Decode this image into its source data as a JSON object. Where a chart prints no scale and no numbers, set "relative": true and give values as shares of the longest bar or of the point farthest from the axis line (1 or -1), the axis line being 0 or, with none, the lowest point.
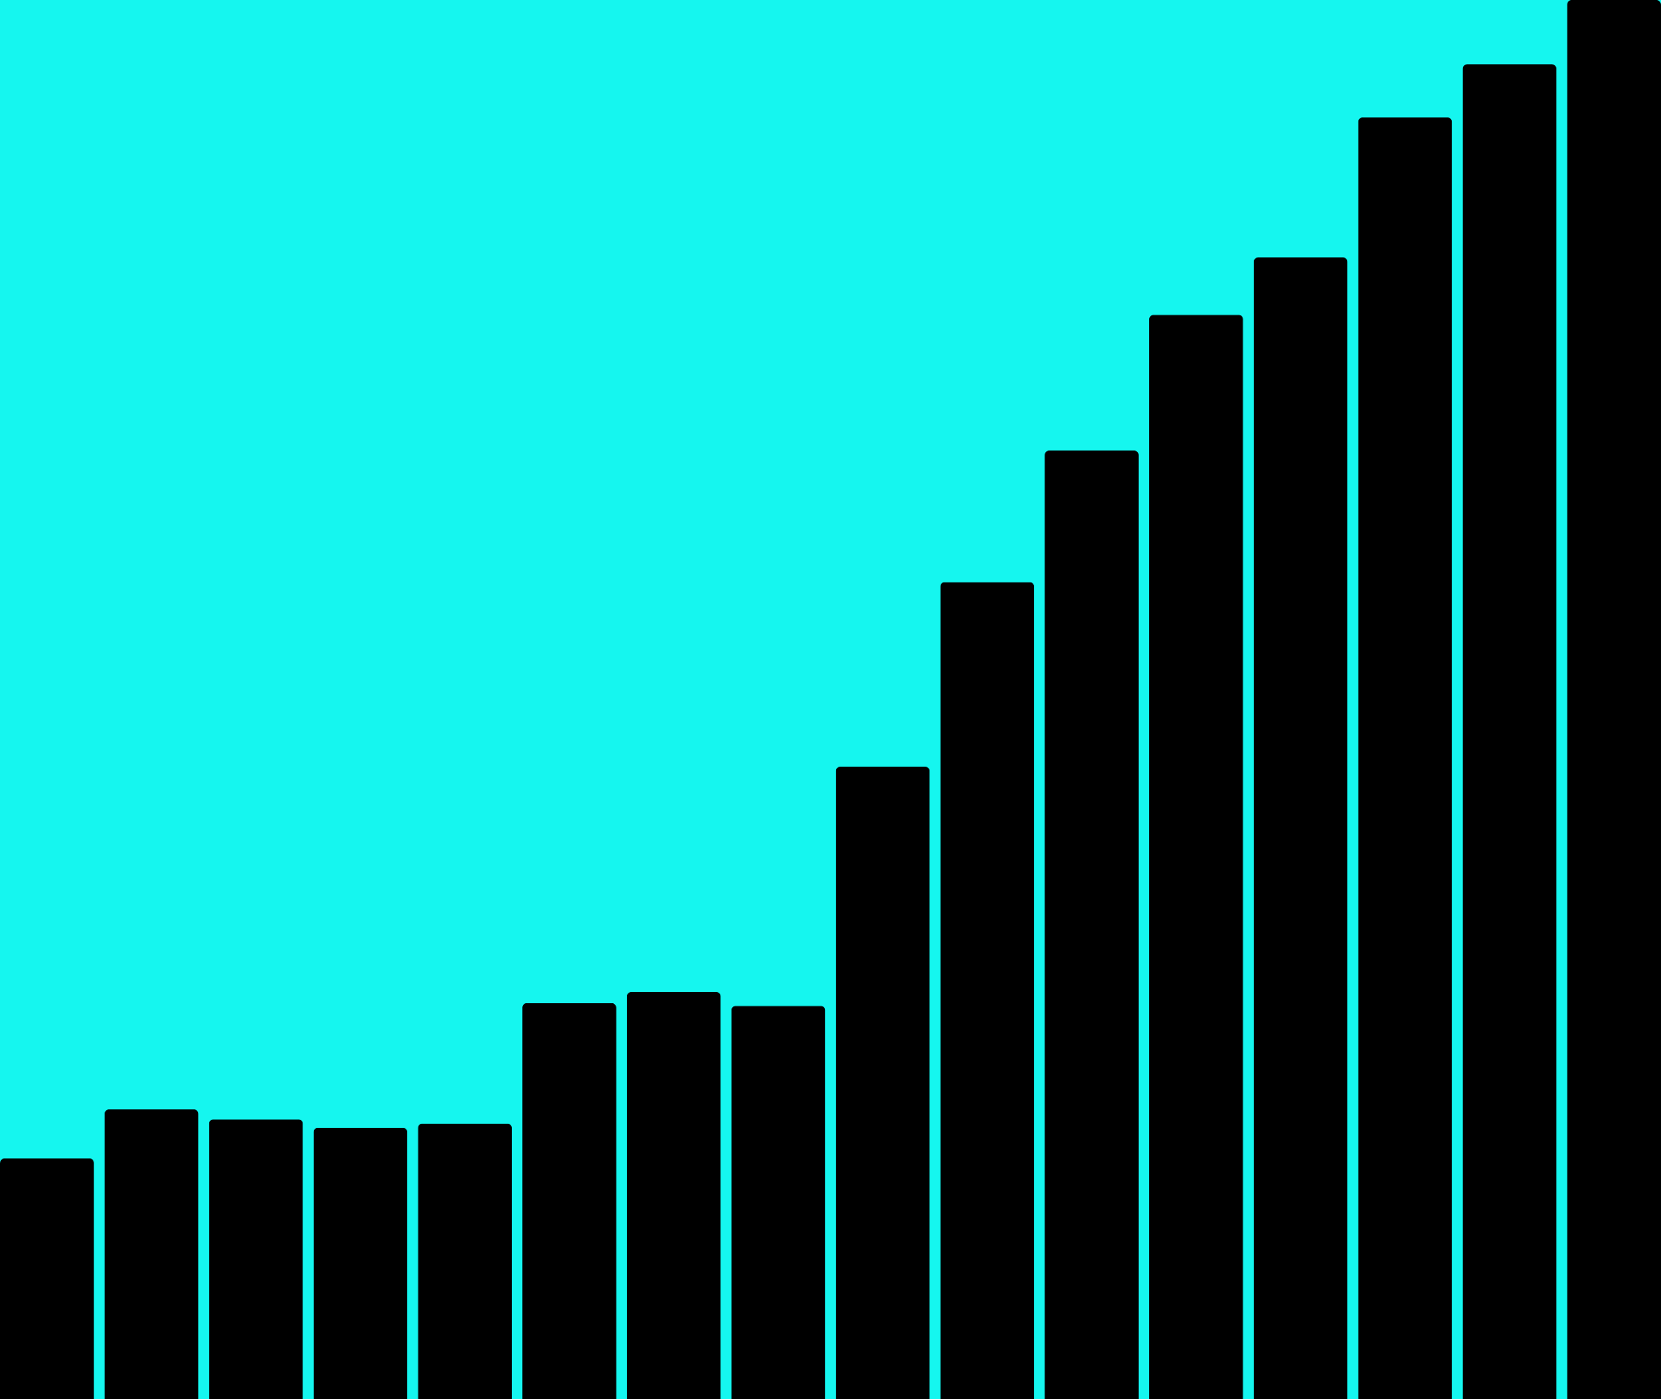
{
  "chart_data": {
    "type": "bar",
    "relative": true,
    "color": "#000000",
    "categories": [
      null,
      null,
      null,
      null,
      null,
      null,
      null,
      null,
      null,
      null,
      null,
      null,
      null,
      null,
      null,
      null
    ],
    "values": [
      0.172,
      0.207,
      0.2,
      0.194,
      0.197,
      0.283,
      0.291,
      0.281,
      0.452,
      0.584,
      0.678,
      0.775,
      0.816,
      0.916,
      0.954,
      1
    ]
  }
}
